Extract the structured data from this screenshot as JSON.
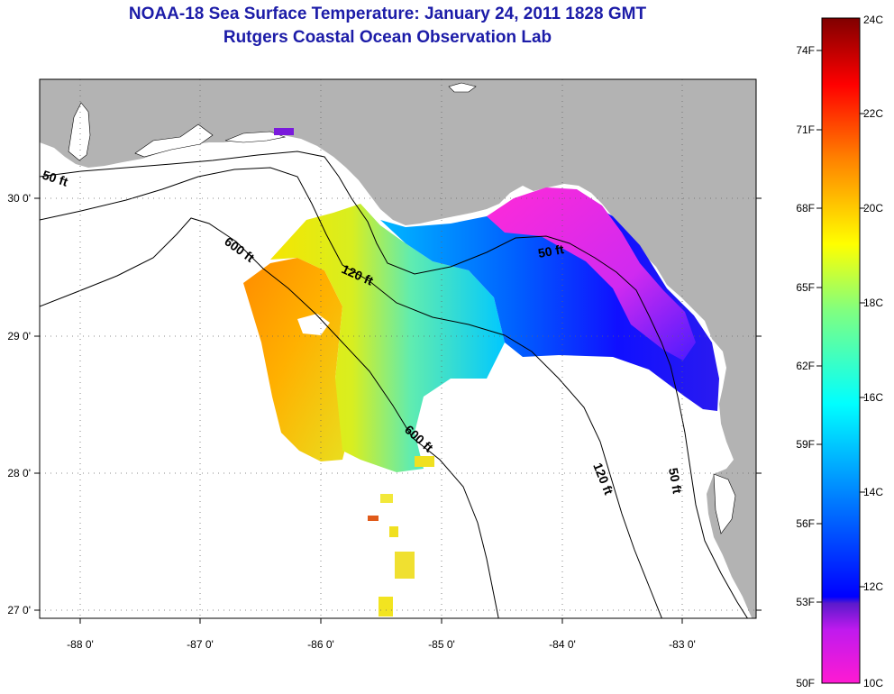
{
  "header": {
    "title": "NOAA-18 Sea Surface Temperature:  January 24, 2011 1828 GMT",
    "subtitle": "Rutgers Coastal Ocean Observation Lab"
  },
  "map": {
    "lon_labels": [
      "-88 0'",
      "-87 0'",
      "-86 0'",
      "-85 0'",
      "-84 0'",
      "-83 0'"
    ],
    "lat_labels": [
      "30 0'",
      "29 0'",
      "28 0'",
      "27 0'"
    ],
    "contour_labels": {
      "c50_west": "50 ft",
      "c600_north": "600 ft",
      "c120_north": "120 ft",
      "c50_big_bend": "50 ft",
      "c600_south": "600 ft",
      "c120_south": "120 ft",
      "c50_south": "50 ft"
    },
    "colors": {
      "land": "#b3b3b3",
      "ocean": "#ffffff",
      "contour": "#000000"
    }
  },
  "colorbar": {
    "fahrenheit_labels": [
      "74F",
      "71F",
      "68F",
      "65F",
      "62F",
      "59F",
      "56F",
      "53F",
      "50F"
    ],
    "celsius_labels": [
      "24C",
      "22C",
      "20C",
      "18C",
      "16C",
      "14C",
      "12C",
      "10C"
    ],
    "range_c": [
      10,
      24
    ]
  }
}
